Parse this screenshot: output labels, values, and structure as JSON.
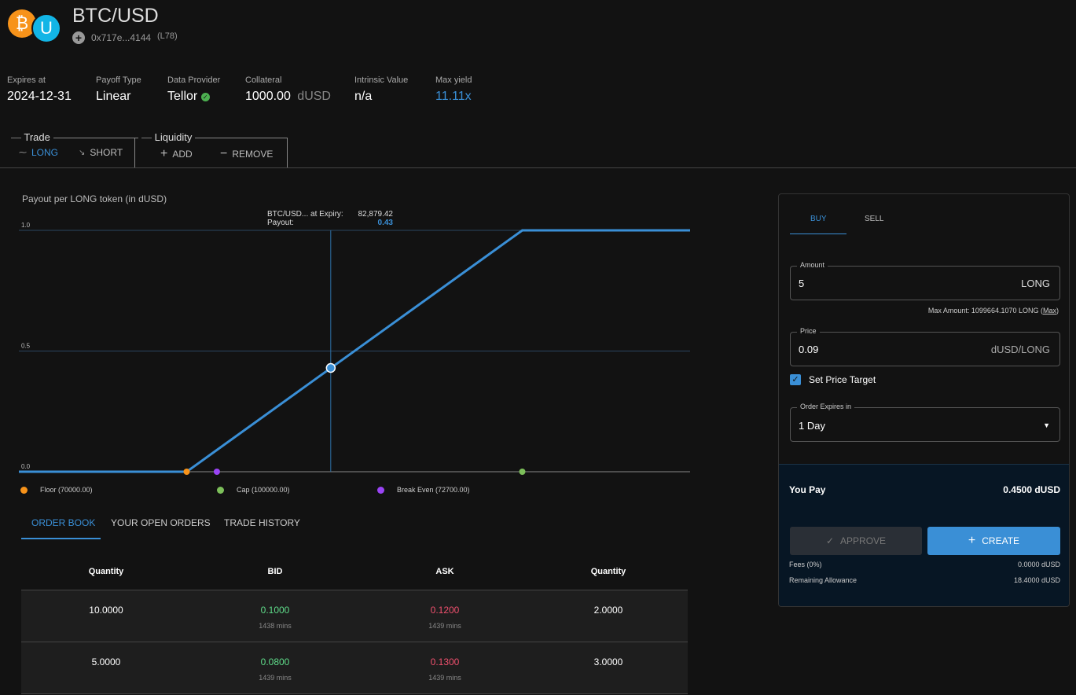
{
  "header": {
    "title": "BTC/USD",
    "address": "0x717e...4144",
    "tag": "(L78)",
    "logo_left": "₿",
    "logo_right": "U",
    "add_icon": "plus-circle-icon"
  },
  "stats": [
    {
      "label": "Expires at",
      "value": "2024-12-31"
    },
    {
      "label": "Payoff Type",
      "value": "Linear"
    },
    {
      "label": "Data Provider",
      "value": "Tellor",
      "icon": "check-circle-icon"
    },
    {
      "label": "Collateral",
      "value": "1000.00",
      "unit": "dUSD"
    },
    {
      "label": "Intrinsic Value",
      "value": "n/a"
    },
    {
      "label": "Max yield",
      "value": "11.11x"
    }
  ],
  "trade_group": {
    "title": "Trade",
    "long": "LONG",
    "short": "SHORT"
  },
  "liquidity_group": {
    "title": "Liquidity",
    "add": "ADD",
    "remove": "REMOVE"
  },
  "chart_data": {
    "type": "line",
    "title": "Payout per LONG token (in dUSD)",
    "x": [
      55000,
      70000,
      100000,
      115000
    ],
    "y": [
      0,
      0,
      1,
      1
    ],
    "xlim": [
      55000,
      115000
    ],
    "ylim": [
      0,
      1
    ],
    "yticks": [
      "0.0",
      "0.5",
      "1.0"
    ],
    "grid": true,
    "tooltip": {
      "label1": "BTC/USD... at Expiry:",
      "value1": "82,879.42",
      "label2": "Payout:",
      "value2": "0.43",
      "x": 82879.42,
      "y": 0.43
    },
    "markers": [
      {
        "name": "Floor (70000.00)",
        "x": 70000,
        "color": "#f7931a"
      },
      {
        "name": "Cap (100000.00)",
        "x": 100000,
        "color": "#7cbf5a"
      },
      {
        "name": "Break Even (72700.00)",
        "x": 72700,
        "color": "#9a44f5"
      }
    ],
    "line_color": "#3a8fd6",
    "legend_placement": "bottom"
  },
  "tabs": [
    "ORDER BOOK",
    "YOUR OPEN ORDERS",
    "TRADE HISTORY"
  ],
  "orderbook": {
    "headers": [
      "Quantity",
      "BID",
      "ASK",
      "Quantity"
    ],
    "rows": [
      {
        "bid_qty": "10.0000",
        "bid": "0.1000",
        "bid_exp": "1438 mins",
        "ask": "0.1200",
        "ask_exp": "1439 mins",
        "ask_qty": "2.0000"
      },
      {
        "bid_qty": "5.0000",
        "bid": "0.0800",
        "bid_exp": "1439 mins",
        "ask": "0.1300",
        "ask_exp": "1439 mins",
        "ask_qty": "3.0000"
      }
    ]
  },
  "panel": {
    "buy": "BUY",
    "sell": "SELL",
    "amount_label": "Amount",
    "amount": "5",
    "amount_unit": "LONG",
    "max_amount": "Max Amount: 1099664.1070 LONG (",
    "max_link": "Max",
    "max_close": ")",
    "price_label": "Price",
    "price": "0.09",
    "price_unit": "dUSD/LONG",
    "set_price_target": "Set Price Target",
    "set_price_target_checked": true,
    "expires_label": "Order Expires in",
    "expires": "1 Day",
    "you_pay": "You Pay",
    "you_pay_value": "0.4500 dUSD",
    "approve": "APPROVE",
    "create": "CREATE",
    "fees_label": "Fees (0%)",
    "fees": "0.0000 dUSD",
    "allowance_label": "Remaining Allowance",
    "allowance": "18.4000 dUSD"
  },
  "colors": {
    "accent": "#3a8fd6",
    "bid": "#5fdc8a",
    "ask": "#f0506e",
    "max_yield": "#3a8fd6"
  }
}
